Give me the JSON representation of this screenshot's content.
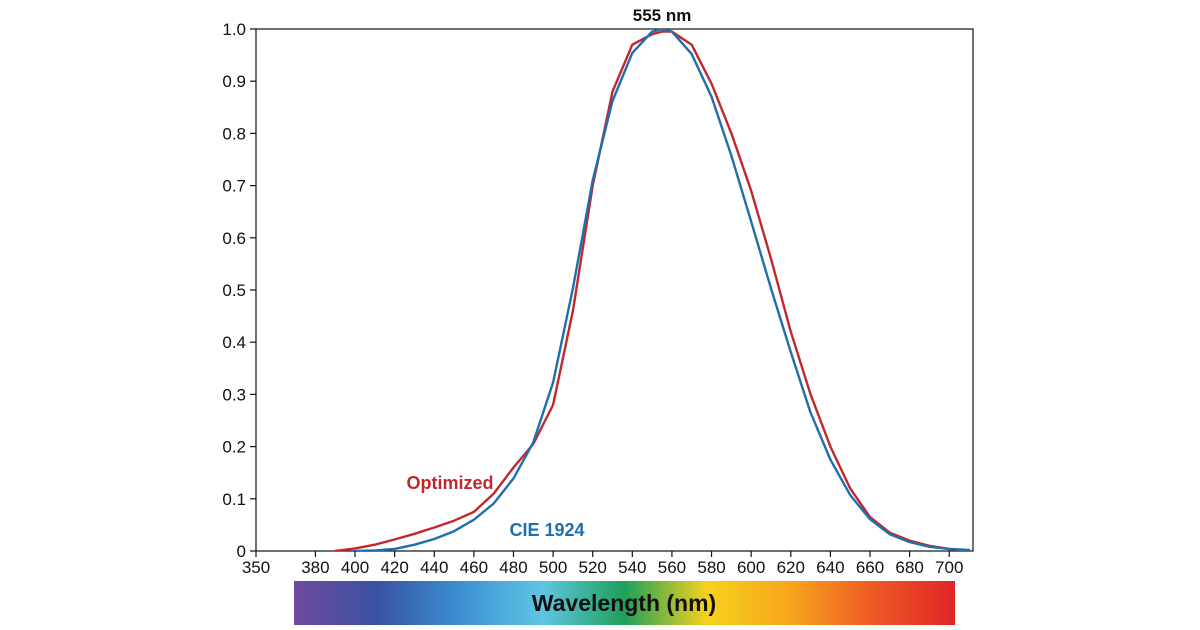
{
  "chart_data": {
    "type": "line",
    "title": "",
    "xlabel": "Wavelength (nm)",
    "ylabel": "",
    "xlim": [
      350,
      712
    ],
    "ylim": [
      0,
      1.0
    ],
    "grid": false,
    "x_ticks": [
      350,
      380,
      400,
      420,
      440,
      460,
      480,
      500,
      520,
      540,
      560,
      580,
      600,
      620,
      640,
      660,
      680,
      700
    ],
    "y_ticks": [
      0,
      0.1,
      0.2,
      0.3,
      0.4,
      0.5,
      0.6,
      0.7,
      0.8,
      0.9,
      1.0
    ],
    "y_tick_labels": [
      "0",
      "0.1",
      "0.2",
      "0.3",
      "0.4",
      "0.5",
      "0.6",
      "0.7",
      "0.8",
      "0.9",
      "1.0"
    ],
    "annotations": [
      {
        "text": "555 nm",
        "x": 555
      }
    ],
    "series": [
      {
        "name": "Optimized",
        "color": "#c0282d",
        "x": [
          390,
          400,
          410,
          420,
          430,
          440,
          450,
          460,
          470,
          480,
          490,
          500,
          510,
          520,
          530,
          540,
          550,
          555,
          560,
          570,
          580,
          590,
          600,
          610,
          620,
          630,
          640,
          650,
          660,
          670,
          680,
          690,
          700,
          710
        ],
        "y": [
          0.0,
          0.005,
          0.012,
          0.022,
          0.033,
          0.045,
          0.058,
          0.075,
          0.11,
          0.16,
          0.205,
          0.28,
          0.46,
          0.7,
          0.88,
          0.97,
          0.99,
          0.995,
          0.995,
          0.97,
          0.895,
          0.8,
          0.69,
          0.56,
          0.42,
          0.3,
          0.2,
          0.12,
          0.065,
          0.035,
          0.02,
          0.01,
          0.004,
          0.0
        ]
      },
      {
        "name": "CIE 1924",
        "color": "#1f6fad",
        "x": [
          400,
          410,
          420,
          430,
          440,
          450,
          460,
          470,
          480,
          490,
          500,
          510,
          520,
          530,
          540,
          550,
          555,
          560,
          570,
          580,
          590,
          600,
          610,
          620,
          630,
          640,
          650,
          660,
          670,
          680,
          690,
          700,
          710
        ],
        "y": [
          0.0,
          0.001,
          0.004,
          0.012,
          0.023,
          0.038,
          0.06,
          0.091,
          0.139,
          0.208,
          0.323,
          0.503,
          0.71,
          0.862,
          0.954,
          0.995,
          1.0,
          0.995,
          0.952,
          0.87,
          0.757,
          0.631,
          0.503,
          0.381,
          0.265,
          0.175,
          0.107,
          0.061,
          0.032,
          0.017,
          0.008,
          0.004,
          0.002
        ]
      }
    ],
    "series_label_positions": {
      "Optimized": {
        "x": 426,
        "y": 0.13
      },
      "CIE 1924": {
        "x": 478,
        "y": 0.04
      }
    },
    "wavelength_bar": {
      "gradient_colors": [
        "#6e4a9e",
        "#3a52a2",
        "#3b8fd2",
        "#5ec6e3",
        "#1fa05a",
        "#f6d21c",
        "#f7a61c",
        "#ee5a25",
        "#e12528"
      ]
    }
  }
}
